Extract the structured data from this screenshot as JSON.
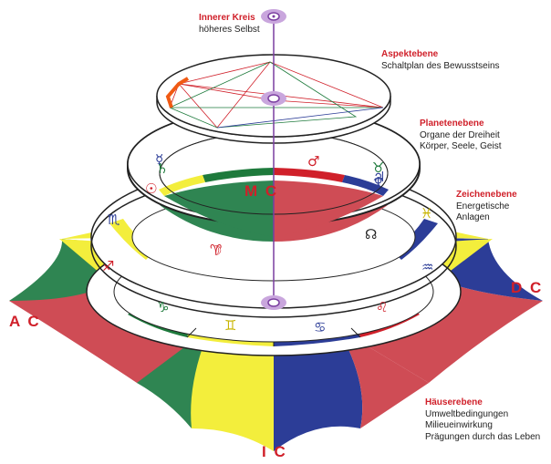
{
  "labels": {
    "inner_circle": {
      "title": "Innerer Kreis",
      "lines": [
        "höheres Selbst"
      ]
    },
    "aspect_plane": {
      "title": "Aspektebene",
      "lines": [
        "Schaltplan des Bewusstseins"
      ]
    },
    "planet_plane": {
      "title": "Planetenebene",
      "lines": [
        "Organe der Dreiheit",
        "Körper, Seele, Geist"
      ]
    },
    "sign_plane": {
      "title": "Zeichenebene",
      "lines": [
        "Energetische",
        "Anlagen"
      ]
    },
    "house_plane": {
      "title": "Häuserebene",
      "lines": [
        "Umweltbedingungen",
        "Milieueinwirkung",
        "Prägungen durch das Leben"
      ]
    }
  },
  "axes": {
    "ac": "A C",
    "dc": "D C",
    "mc": "M C",
    "ic": "I C"
  },
  "house_colors": [
    "#cf4c55",
    "#2f8552",
    "#f3ee3c",
    "#2c3d97"
  ],
  "sign_glyphs": [
    {
      "name": "capricorn-glyph",
      "char": "♑",
      "color": "#1e7a3c"
    },
    {
      "name": "sagittarius-glyph",
      "char": "♐",
      "color": "#d0202a"
    },
    {
      "name": "scorpio-glyph",
      "char": "♏",
      "color": "#2c3d97"
    },
    {
      "name": "aquarius-glyph",
      "char": "♒",
      "color": "#2c3d97"
    },
    {
      "name": "pisces-glyph",
      "char": "♓",
      "color": "#c8b400"
    },
    {
      "name": "gemini-glyph",
      "char": "♊",
      "color": "#c8b400"
    },
    {
      "name": "cancer-glyph",
      "char": "♋",
      "color": "#2c3d97"
    },
    {
      "name": "leo-glyph",
      "char": "♌",
      "color": "#d0202a"
    },
    {
      "name": "aries-glyph",
      "char": "♈",
      "color": "#d0202a"
    },
    {
      "name": "taurus-glyph",
      "char": "♉",
      "color": "#1e7a3c"
    }
  ],
  "planet_glyphs": [
    {
      "name": "mercury-glyph",
      "char": "☿",
      "color": "#2c3d97"
    },
    {
      "name": "saturn-glyph",
      "char": "♄",
      "color": "#1e7a3c"
    },
    {
      "name": "sun-glyph",
      "char": "☉",
      "color": "#d0202a"
    },
    {
      "name": "mars-glyph",
      "char": "♂",
      "color": "#d0202a"
    },
    {
      "name": "jupiter-glyph",
      "char": "♃",
      "color": "#2c3d97"
    },
    {
      "name": "neptune-glyph",
      "char": "♆",
      "color": "#2c3d97"
    },
    {
      "name": "moon-glyph",
      "char": "☽",
      "color": "#d0202a"
    },
    {
      "name": "node-glyph",
      "char": "☊",
      "color": "#222222"
    }
  ]
}
